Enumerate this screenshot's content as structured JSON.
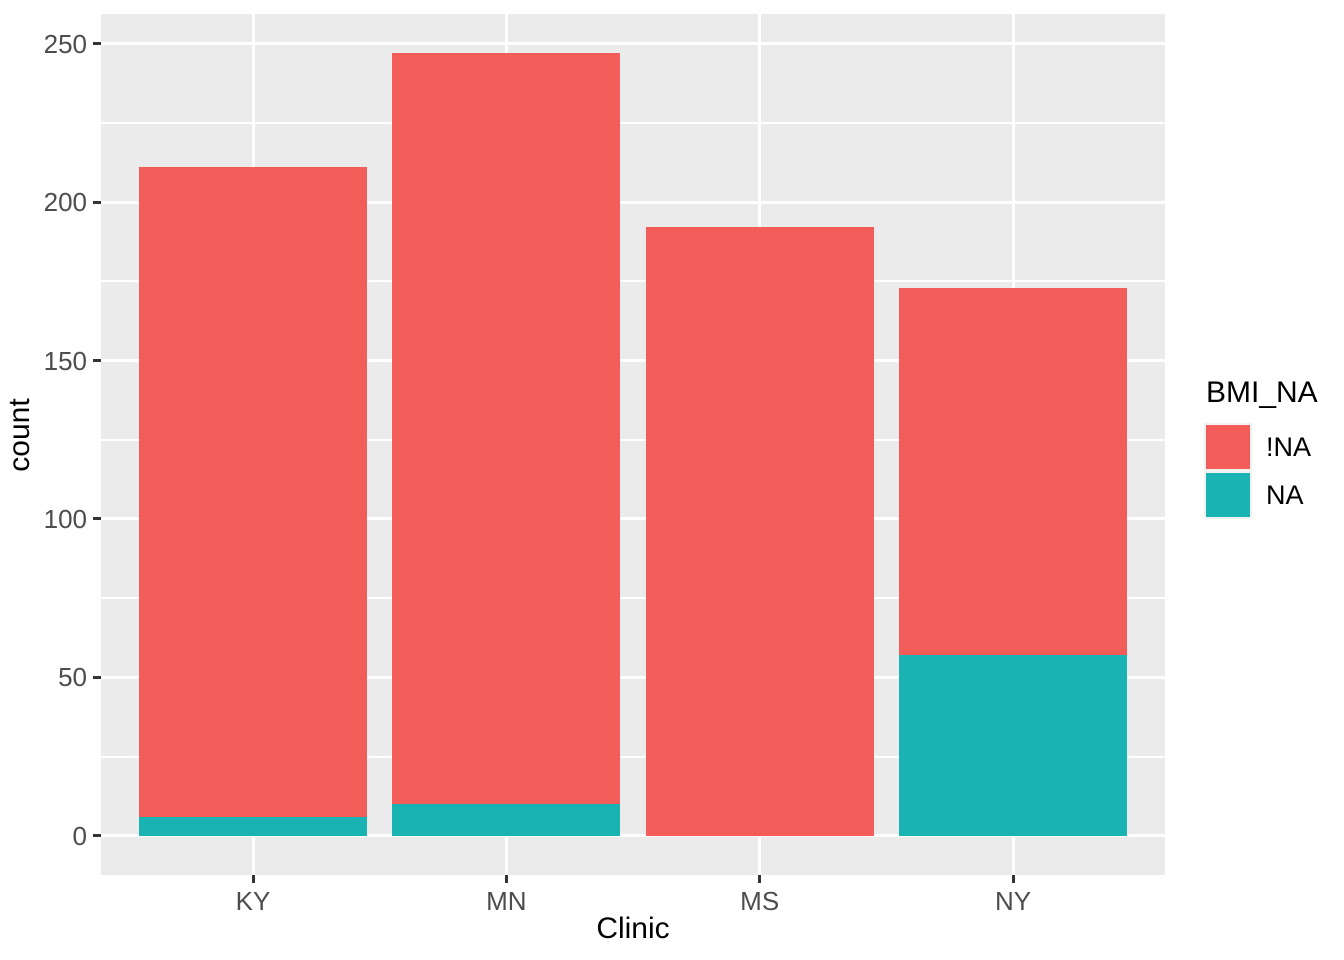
{
  "chart_data": {
    "type": "bar",
    "stacked": true,
    "orientation": "vertical",
    "title": "",
    "xlabel": "Clinic",
    "ylabel": "count",
    "categories": [
      "KY",
      "MN",
      "MS",
      "NY"
    ],
    "series": [
      {
        "name": "!NA",
        "color": "#F25D59",
        "values": [
          205,
          237,
          192,
          116
        ]
      },
      {
        "name": "NA",
        "color": "#1AB3B4",
        "values": [
          6,
          10,
          0,
          57
        ]
      }
    ],
    "stack_order_bottom_to_top": [
      "NA",
      "!NA"
    ],
    "totals": [
      211,
      247,
      192,
      173
    ],
    "y_ticks": [
      0,
      50,
      100,
      150,
      200,
      250
    ],
    "y_minor_ticks": [
      25,
      75,
      125,
      175,
      225
    ],
    "y_tick_labels": [
      "0",
      "50",
      "100",
      "150",
      "200",
      "250"
    ],
    "ylim": [
      0,
      250
    ],
    "grid": true,
    "legend": {
      "title": "BMI_NA",
      "position": "right",
      "entries": [
        {
          "label": "!NA",
          "color": "#F25D59"
        },
        {
          "label": "NA",
          "color": "#1AB3B4"
        }
      ]
    }
  },
  "colors": {
    "figure_background": "#FFFFFF",
    "panel_background": "#EBEBEB",
    "gridline": "#FFFFFF",
    "axis_text": "#4D4D4D",
    "axis_title": "#000000",
    "tick_mark": "#333333",
    "legend_key_background": "#F2F2F2"
  }
}
